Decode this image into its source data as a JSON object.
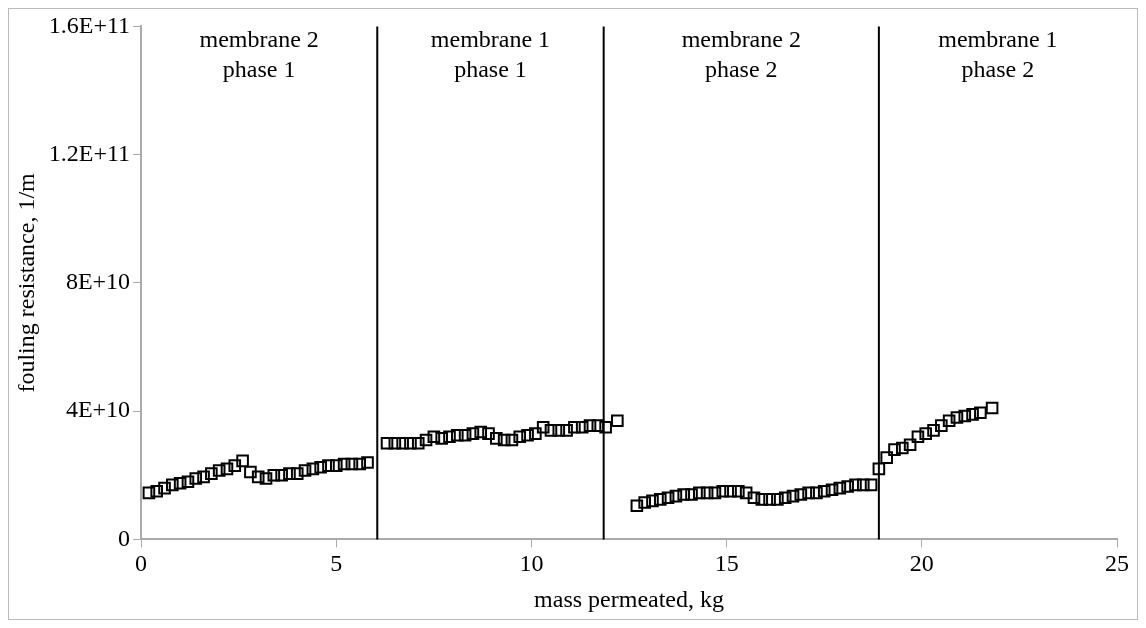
{
  "chart_data": {
    "type": "scatter",
    "xlabel": "mass permeated, kg",
    "ylabel": "fouling resistance, 1/m",
    "x": [
      0.2,
      0.4,
      0.6,
      0.8,
      1.0,
      1.2,
      1.4,
      1.6,
      1.8,
      2.0,
      2.2,
      2.4,
      2.6,
      2.8,
      3.0,
      3.2,
      3.4,
      3.6,
      3.8,
      4.0,
      4.2,
      4.4,
      4.6,
      4.8,
      5.0,
      5.2,
      5.4,
      5.6,
      5.8,
      6.3,
      6.5,
      6.7,
      6.9,
      7.1,
      7.3,
      7.5,
      7.7,
      7.9,
      8.1,
      8.3,
      8.5,
      8.7,
      8.9,
      9.1,
      9.3,
      9.5,
      9.7,
      9.9,
      10.1,
      10.3,
      10.5,
      10.7,
      10.9,
      11.1,
      11.3,
      11.5,
      11.7,
      11.9,
      12.2,
      12.7,
      12.9,
      13.1,
      13.3,
      13.5,
      13.7,
      13.9,
      14.1,
      14.3,
      14.5,
      14.7,
      14.9,
      15.1,
      15.3,
      15.5,
      15.7,
      15.9,
      16.1,
      16.3,
      16.5,
      16.7,
      16.9,
      17.1,
      17.3,
      17.5,
      17.7,
      17.9,
      18.1,
      18.3,
      18.5,
      18.7,
      18.9,
      19.1,
      19.3,
      19.5,
      19.7,
      19.9,
      20.1,
      20.3,
      20.5,
      20.7,
      20.9,
      21.1,
      21.3,
      21.5,
      21.8
    ],
    "values": [
      14500000000.0,
      15000000000.0,
      16000000000.0,
      17000000000.0,
      17500000000.0,
      18000000000.0,
      19000000000.0,
      19500000000.0,
      20500000000.0,
      21500000000.0,
      22000000000.0,
      23000000000.0,
      24500000000.0,
      21000000000.0,
      19500000000.0,
      19000000000.0,
      20000000000.0,
      20000000000.0,
      20500000000.0,
      20500000000.0,
      21500000000.0,
      22000000000.0,
      22500000000.0,
      23000000000.0,
      23000000000.0,
      23500000000.0,
      23500000000.0,
      23500000000.0,
      24000000000.0,
      30000000000.0,
      30000000000.0,
      30000000000.0,
      30000000000.0,
      30000000000.0,
      31000000000.0,
      32000000000.0,
      31500000000.0,
      32000000000.0,
      32500000000.0,
      32500000000.0,
      33000000000.0,
      33500000000.0,
      33000000000.0,
      31500000000.0,
      31000000000.0,
      31000000000.0,
      32000000000.0,
      32500000000.0,
      33000000000.0,
      35000000000.0,
      34000000000.0,
      34000000000.0,
      34000000000.0,
      35000000000.0,
      35000000000.0,
      35500000000.0,
      35500000000.0,
      35000000000.0,
      37000000000.0,
      10500000000.0,
      11500000000.0,
      12000000000.0,
      12500000000.0,
      13000000000.0,
      13500000000.0,
      14000000000.0,
      14000000000.0,
      14500000000.0,
      14500000000.0,
      14500000000.0,
      15000000000.0,
      15000000000.0,
      15000000000.0,
      14500000000.0,
      13000000000.0,
      12500000000.0,
      12500000000.0,
      12500000000.0,
      13000000000.0,
      13500000000.0,
      14000000000.0,
      14500000000.0,
      14500000000.0,
      15000000000.0,
      15500000000.0,
      16000000000.0,
      16500000000.0,
      17000000000.0,
      17000000000.0,
      17000000000.0,
      22000000000.0,
      25500000000.0,
      28000000000.0,
      28500000000.0,
      29500000000.0,
      32000000000.0,
      33000000000.0,
      34000000000.0,
      35500000000.0,
      37000000000.0,
      38000000000.0,
      38500000000.0,
      39000000000.0,
      39500000000.0,
      41000000000.0
    ],
    "color": "#000000",
    "marker": "square",
    "xlim": [
      0,
      25
    ],
    "xticks": [
      0,
      5,
      10,
      15,
      20,
      25
    ],
    "ylim": [
      0,
      160000000000.0
    ],
    "yticks": [
      0,
      {
        "value": 40000000000.0,
        "label": "4E+10"
      },
      {
        "value": 80000000000.0,
        "label": "8E+10"
      },
      {
        "value": 120000000000.0,
        "label": "1.2E+11"
      },
      {
        "value": 160000000000.0,
        "label": "1.6E+11"
      }
    ],
    "grid": false,
    "legend": false,
    "ref_lines": [
      {
        "axis": "x",
        "value": 6.05,
        "color": "#000000"
      },
      {
        "axis": "x",
        "value": 11.85,
        "color": "#000000"
      },
      {
        "axis": "x",
        "value": 18.9,
        "color": "#000000"
      }
    ],
    "annotations": [
      "membrane 2\nphase 1",
      "membrane 1\nphase 1",
      "membrane 2\nphase 2",
      "membrane 1\nphase 2"
    ]
  }
}
